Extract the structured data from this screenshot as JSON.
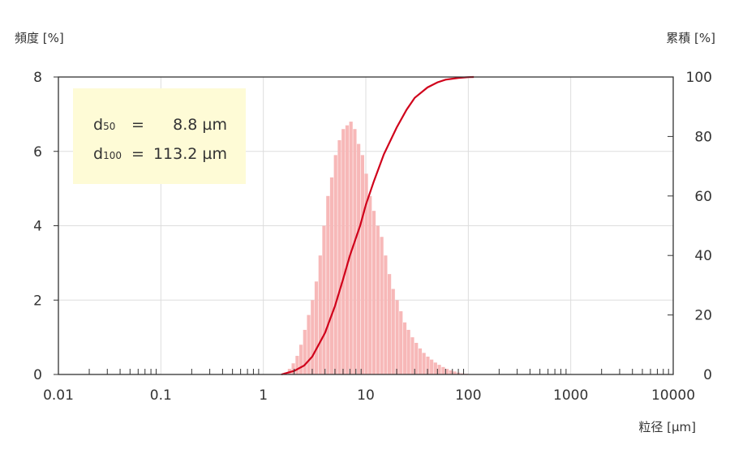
{
  "chart_data": {
    "type": "bar",
    "x_scale": "log",
    "xlim": [
      0.01,
      10000
    ],
    "ylim_left": [
      0,
      8
    ],
    "ylim_right": [
      0,
      100
    ],
    "x_tick_labels": [
      "0.01",
      "0.1",
      "1",
      "10",
      "100",
      "1000",
      "10000"
    ],
    "y_left_tick_labels": [
      "0",
      "2",
      "4",
      "6",
      "8"
    ],
    "y_right_tick_labels": [
      "0",
      "20",
      "40",
      "60",
      "80",
      "100"
    ],
    "ylabel_left": "頻度 [%]",
    "ylabel_right": "累積 [%]",
    "xlabel": "粒径 [µm]",
    "grid": true,
    "legend": "none",
    "stats": [
      {
        "label": "d",
        "sub": "50",
        "eq": "=",
        "value": "8.8 µm"
      },
      {
        "label": "d",
        "sub": "100",
        "eq": "=",
        "value": "113.2 µm"
      }
    ],
    "series": [
      {
        "type": "bar",
        "axis": "left",
        "color": "#f7b8b8",
        "x": [
          1.65,
          1.8,
          1.96,
          2.14,
          2.33,
          2.54,
          2.77,
          3.02,
          3.29,
          3.59,
          3.91,
          4.27,
          4.65,
          5.07,
          5.53,
          6.03,
          6.57,
          7.16,
          7.81,
          8.51,
          9.28,
          10.1,
          11.0,
          12.0,
          13.1,
          14.3,
          15.6,
          17.0,
          18.5,
          20.2,
          22.0,
          24.0,
          26.1,
          28.5,
          31.1,
          33.9,
          36.9,
          40.3,
          43.9,
          47.8,
          52.1,
          56.9,
          62.0,
          67.6,
          73.7,
          80.3,
          87.6,
          95.5,
          104.1,
          113.2
        ],
        "values": [
          0.05,
          0.15,
          0.3,
          0.5,
          0.8,
          1.2,
          1.6,
          2.0,
          2.5,
          3.2,
          4.0,
          4.8,
          5.3,
          5.9,
          6.3,
          6.6,
          6.7,
          6.8,
          6.6,
          6.2,
          5.9,
          5.4,
          4.8,
          4.4,
          4.0,
          3.7,
          3.2,
          2.7,
          2.3,
          2.0,
          1.7,
          1.4,
          1.2,
          1.0,
          0.85,
          0.7,
          0.58,
          0.48,
          0.4,
          0.32,
          0.26,
          0.2,
          0.15,
          0.11,
          0.08,
          0.05,
          0.03,
          0.02,
          0.01,
          0.005
        ]
      },
      {
        "type": "line",
        "axis": "right",
        "color": "#d0021b",
        "x": [
          1.5,
          2.0,
          2.5,
          3.0,
          4.0,
          5.0,
          6.0,
          7.0,
          8.8,
          10.0,
          12.0,
          15.0,
          20.0,
          25.0,
          30.0,
          40.0,
          50.0,
          60.0,
          80.0,
          100.0,
          113.2
        ],
        "values": [
          0,
          1.2,
          3.0,
          6.0,
          14.0,
          23.0,
          32.0,
          40.0,
          50.0,
          57.0,
          65.0,
          74.0,
          83.0,
          89.0,
          93.0,
          96.5,
          98.2,
          99.1,
          99.7,
          99.95,
          100
        ]
      }
    ]
  }
}
